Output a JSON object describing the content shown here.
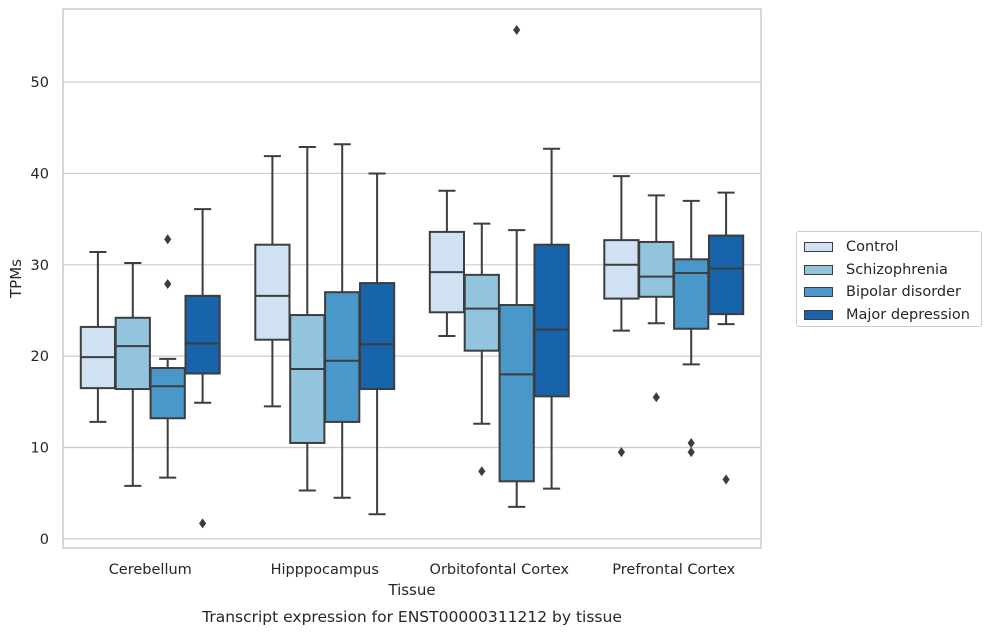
{
  "chart_data": {
    "type": "box",
    "title": "Transcript expression for ENST00000311212 by tissue",
    "xlabel": "Tissue",
    "ylabel": "TPMs",
    "ylim": [
      -1,
      58
    ],
    "yticks": [
      0,
      10,
      20,
      30,
      40,
      50
    ],
    "grid": "horizontal",
    "legend_position": "right",
    "categories": [
      "Cerebellum",
      "Hipppocampus",
      "Orbitofontal Cortex",
      "Prefrontal Cortex"
    ],
    "series": [
      {
        "name": "Control",
        "color": "#cfe1f2",
        "boxes": [
          {
            "whisker_low": 12.8,
            "q1": 16.5,
            "median": 19.9,
            "q3": 23.2,
            "whisker_high": 31.4,
            "outliers": []
          },
          {
            "whisker_low": 14.5,
            "q1": 21.8,
            "median": 26.6,
            "q3": 32.2,
            "whisker_high": 41.9,
            "outliers": []
          },
          {
            "whisker_low": 22.2,
            "q1": 24.8,
            "median": 29.2,
            "q3": 33.6,
            "whisker_high": 38.1,
            "outliers": []
          },
          {
            "whisker_low": 22.8,
            "q1": 26.3,
            "median": 30.0,
            "q3": 32.7,
            "whisker_high": 39.7,
            "outliers": [
              9.5
            ]
          }
        ]
      },
      {
        "name": "Schizophrenia",
        "color": "#93c4de",
        "boxes": [
          {
            "whisker_low": 5.8,
            "q1": 16.4,
            "median": 21.1,
            "q3": 24.2,
            "whisker_high": 30.2,
            "outliers": []
          },
          {
            "whisker_low": 5.3,
            "q1": 10.5,
            "median": 18.6,
            "q3": 24.5,
            "whisker_high": 42.9,
            "outliers": []
          },
          {
            "whisker_low": 12.6,
            "q1": 20.6,
            "median": 25.2,
            "q3": 28.9,
            "whisker_high": 34.5,
            "outliers": [
              7.4
            ]
          },
          {
            "whisker_low": 23.6,
            "q1": 26.5,
            "median": 28.7,
            "q3": 32.5,
            "whisker_high": 37.6,
            "outliers": [
              15.5
            ]
          }
        ]
      },
      {
        "name": "Bipolar disorder",
        "color": "#4a98c9",
        "boxes": [
          {
            "whisker_low": 6.7,
            "q1": 13.2,
            "median": 16.7,
            "q3": 18.7,
            "whisker_high": 19.7,
            "outliers": [
              32.8,
              27.9
            ]
          },
          {
            "whisker_low": 4.5,
            "q1": 12.8,
            "median": 19.5,
            "q3": 27.0,
            "whisker_high": 43.2,
            "outliers": []
          },
          {
            "whisker_low": 3.5,
            "q1": 6.3,
            "median": 18.0,
            "q3": 25.6,
            "whisker_high": 33.8,
            "outliers": [
              55.7
            ]
          },
          {
            "whisker_low": 19.1,
            "q1": 23.0,
            "median": 29.1,
            "q3": 30.6,
            "whisker_high": 37.0,
            "outliers": [
              10.5,
              9.5
            ]
          }
        ]
      },
      {
        "name": "Major depression",
        "color": "#1764ab",
        "boxes": [
          {
            "whisker_low": 14.9,
            "q1": 18.1,
            "median": 21.4,
            "q3": 26.6,
            "whisker_high": 36.1,
            "outliers": [
              1.7
            ]
          },
          {
            "whisker_low": 2.7,
            "q1": 16.4,
            "median": 21.3,
            "q3": 28.0,
            "whisker_high": 40.0,
            "outliers": []
          },
          {
            "whisker_low": 5.5,
            "q1": 15.6,
            "median": 22.9,
            "q3": 32.2,
            "whisker_high": 42.7,
            "outliers": []
          },
          {
            "whisker_low": 23.5,
            "q1": 24.6,
            "median": 29.6,
            "q3": 33.2,
            "whisker_high": 37.9,
            "outliers": [
              6.5
            ]
          }
        ]
      }
    ]
  }
}
